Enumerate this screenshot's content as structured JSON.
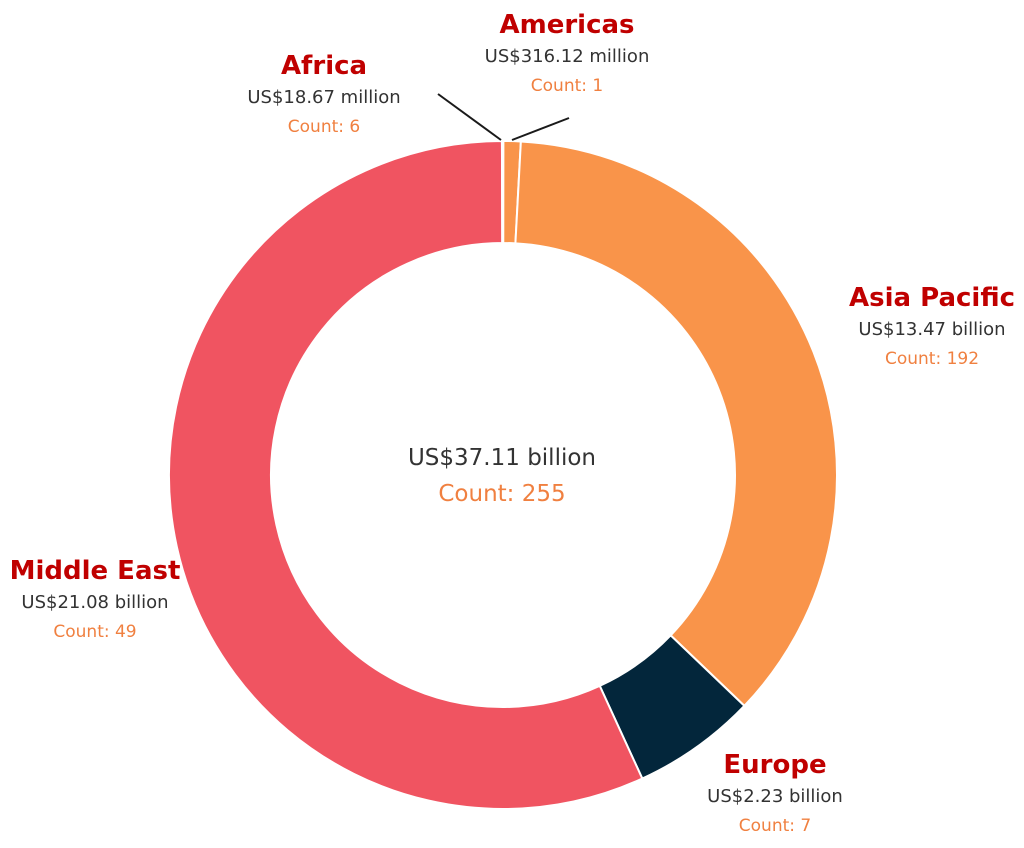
{
  "colors": {
    "region_label": "#c00000",
    "count_label": "#f08040",
    "value_label": "#333333",
    "leader_line": "#1a1a1a"
  },
  "chart_data": {
    "type": "pie",
    "style": "donut",
    "unit": "US$ billion",
    "center": {
      "total": "US$37.11 billion",
      "count": "Count: 255"
    },
    "slices": [
      {
        "name": "Americas",
        "value": 0.31612,
        "value_label": "US$316.12 million",
        "count": 1,
        "count_label": "Count: 1",
        "color": "#f9944a"
      },
      {
        "name": "Asia Pacific",
        "value": 13.47,
        "value_label": "US$13.47 billion",
        "count": 192,
        "count_label": "Count: 192",
        "color": "#f9944a"
      },
      {
        "name": "Europe",
        "value": 2.23,
        "value_label": "US$2.23 billion",
        "count": 7,
        "count_label": "Count: 7",
        "color": "#03263b"
      },
      {
        "name": "Middle East",
        "value": 21.08,
        "value_label": "US$21.08 billion",
        "count": 49,
        "count_label": "Count: 49",
        "color": "#f05461"
      },
      {
        "name": "Africa",
        "value": 0.01867,
        "value_label": "US$18.67 million",
        "count": 6,
        "count_label": "Count: 6",
        "color": "#4b4e8c"
      }
    ]
  }
}
